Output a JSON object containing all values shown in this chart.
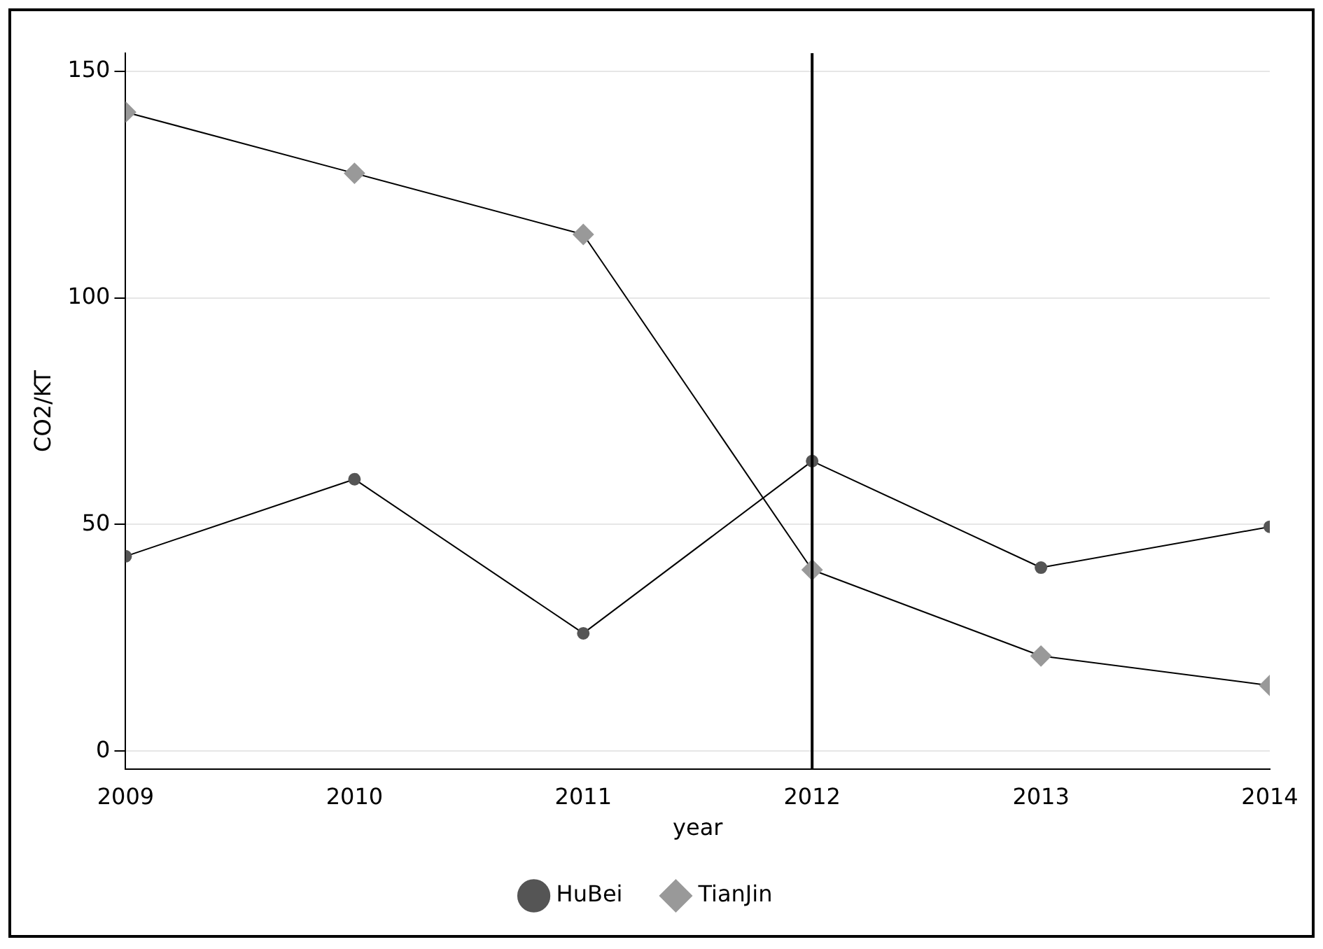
{
  "chart_data": {
    "type": "line",
    "xlabel": "year",
    "ylabel": "CO2/KT",
    "x": [
      2009,
      2010,
      2011,
      2012,
      2013,
      2014
    ],
    "series": [
      {
        "name": "HuBei",
        "color": "#555555",
        "marker": "circle",
        "values": [
          43,
          60,
          26,
          64,
          40.5,
          49.5
        ]
      },
      {
        "name": "TianJin",
        "color": "#999999",
        "marker": "diamond",
        "values": [
          141,
          127.5,
          114,
          40,
          21,
          14.5
        ]
      }
    ],
    "xlim": [
      2009,
      2014
    ],
    "xticks": [
      2009,
      2010,
      2011,
      2012,
      2013,
      2014
    ],
    "ylim": [
      -4,
      154
    ],
    "yticks": [
      0,
      50,
      100,
      150
    ],
    "ref_lines": [
      {
        "axis": "x",
        "value": 2012,
        "color": "#000000"
      }
    ],
    "grid": "y",
    "legend": "bottom"
  }
}
